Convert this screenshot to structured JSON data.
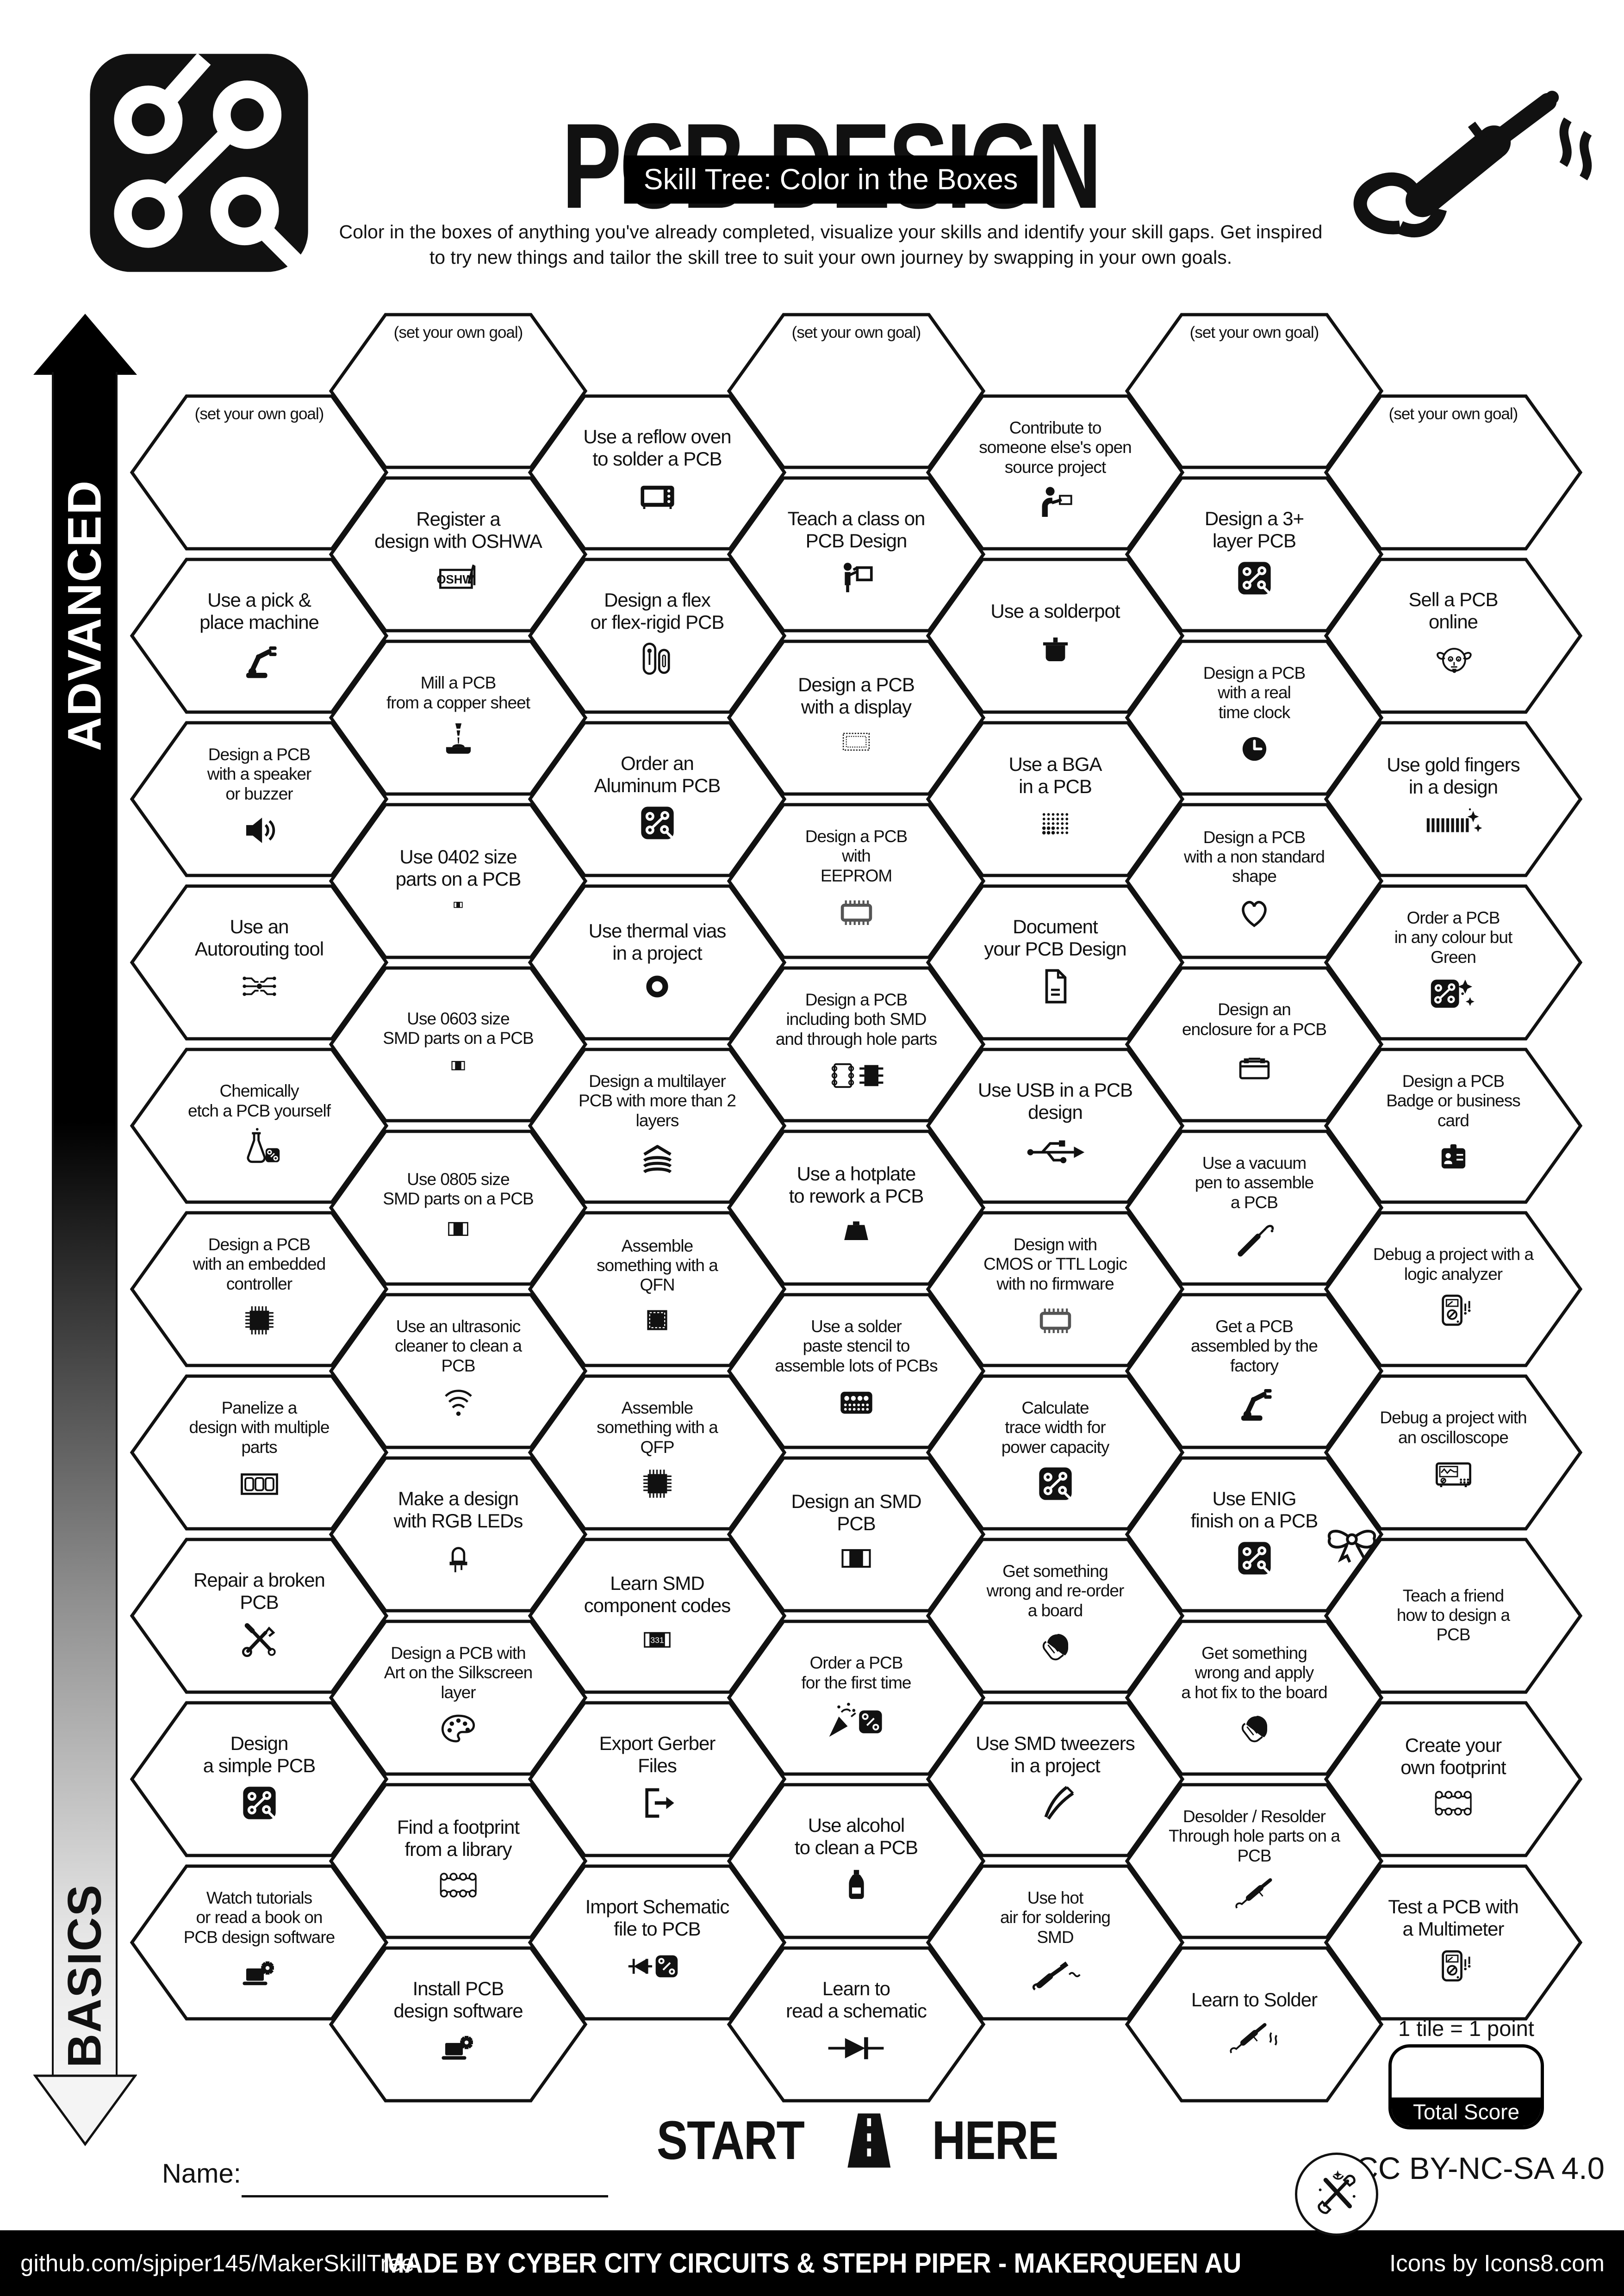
{
  "header": {
    "title": "PCB DESIGN",
    "subtitle": "Skill Tree: Color in the Boxes",
    "description": "Color in the boxes of anything you've already completed, visualize your skills and identify your skill gaps.  Get inspired\nto try new things and tailor the skill tree to suit your own journey by swapping in your own goals."
  },
  "axis": {
    "top_label": "ADVANCED",
    "bottom_label": "BASICS"
  },
  "start_marker": {
    "left": "START",
    "right": "HERE",
    "icon": "road-icon"
  },
  "name_field": {
    "label": "Name:"
  },
  "score": {
    "tile_note": "1 tile = 1 point",
    "box_label": "Total Score"
  },
  "license": "CC BY-NC-SA 4.0",
  "footer": {
    "left": "github.com/sjpiper145/MakerSkillTree",
    "center": "MADE BY CYBER CITY CIRCUITS & STEPH PIPER  -  MAKERQUEEN AU",
    "right": "Icons by Icons8.com"
  },
  "colors": {
    "ink": "#111111",
    "paper": "#ffffff"
  },
  "hexes": [
    {
      "col": 1,
      "slot": 0,
      "goal": true,
      "label": "(set your own goal)"
    },
    {
      "col": 1,
      "slot": 1,
      "label": "Use a pick &\nplace machine",
      "icon": "robot-arm-icon"
    },
    {
      "col": 1,
      "slot": 2,
      "label": "Design a PCB\nwith a speaker\nor buzzer",
      "icon": "speaker-icon"
    },
    {
      "col": 1,
      "slot": 3,
      "label": "Use an\nAutorouting tool",
      "icon": "autoroute-icon"
    },
    {
      "col": 1,
      "slot": 4,
      "label": "Chemically\netch a PCB yourself",
      "icon": "flask-pcb-icon"
    },
    {
      "col": 1,
      "slot": 5,
      "label": "Design a PCB\nwith an embedded\ncontroller",
      "icon": "chip-icon"
    },
    {
      "col": 1,
      "slot": 6,
      "label": "Panelize a\ndesign with multiple\nparts",
      "icon": "panel-icon"
    },
    {
      "col": 1,
      "slot": 7,
      "label": "Repair a broken\nPCB",
      "icon": "repair-tools-icon"
    },
    {
      "col": 1,
      "slot": 8,
      "label": "Design\na simple PCB",
      "icon": "pcb-icon"
    },
    {
      "col": 1,
      "slot": 9,
      "label": "Watch tutorials\nor read a book on\nPCB design software",
      "icon": "laptop-gear-icon"
    },
    {
      "col": 2,
      "slot": 0,
      "goal": true,
      "label": "(set your own goal)"
    },
    {
      "col": 2,
      "slot": 1,
      "label": "Register a\ndesign with OSHWA",
      "icon": "oshwa-logo-icon"
    },
    {
      "col": 2,
      "slot": 2,
      "label": "Mill a PCB\nfrom a copper sheet",
      "icon": "mill-icon"
    },
    {
      "col": 2,
      "slot": 3,
      "label": "Use 0402 size\nparts on a PCB",
      "icon": "resistor-0402-icon"
    },
    {
      "col": 2,
      "slot": 4,
      "label": "Use 0603 size\nSMD parts on a PCB",
      "icon": "resistor-0603-icon"
    },
    {
      "col": 2,
      "slot": 5,
      "label": "Use 0805 size\nSMD parts on a PCB",
      "icon": "resistor-0805-icon"
    },
    {
      "col": 2,
      "slot": 6,
      "label": "Use an ultrasonic\ncleaner to clean a\nPCB",
      "icon": "waves-icon"
    },
    {
      "col": 2,
      "slot": 7,
      "label": "Make a design\nwith RGB LEDs",
      "icon": "led-icon"
    },
    {
      "col": 2,
      "slot": 8,
      "label": "Design a PCB with\nArt on the Silkscreen\nlayer",
      "icon": "palette-icon"
    },
    {
      "col": 2,
      "slot": 9,
      "label": "Find a footprint\nfrom a library",
      "icon": "footprint-icon"
    },
    {
      "col": 2,
      "slot": 10,
      "label": "Install PCB\ndesign software",
      "icon": "laptop-gear-icon"
    },
    {
      "col": 3,
      "slot": 0,
      "label": "Use a reflow oven\nto solder a PCB",
      "icon": "reflow-oven-icon"
    },
    {
      "col": 3,
      "slot": 1,
      "label": "Design a flex\nor flex-rigid PCB",
      "icon": "flex-pcb-icon"
    },
    {
      "col": 3,
      "slot": 2,
      "label": "Order an\nAluminum PCB",
      "icon": "pcb-icon"
    },
    {
      "col": 3,
      "slot": 3,
      "label": "Use thermal vias\nin a project",
      "icon": "via-icon"
    },
    {
      "col": 3,
      "slot": 4,
      "label": "Design a multilayer\nPCB with more than 2\nlayers",
      "icon": "layers-icon"
    },
    {
      "col": 3,
      "slot": 5,
      "label": "Assemble\nsomething  with a\nQFN",
      "icon": "qfn-chip-icon"
    },
    {
      "col": 3,
      "slot": 6,
      "label": "Assemble\nsomething  with a\nQFP",
      "icon": "chip-icon"
    },
    {
      "col": 3,
      "slot": 7,
      "label": "Learn SMD\ncomponent codes",
      "icon": "smd-code-icon"
    },
    {
      "col": 3,
      "slot": 8,
      "label": "Export Gerber\nFiles",
      "icon": "export-icon"
    },
    {
      "col": 3,
      "slot": 9,
      "label": "Import Schematic\nfile to PCB",
      "icon": "import-schematic-icon"
    },
    {
      "col": 4,
      "slot": 0,
      "goal": true,
      "label": "(set your own goal)"
    },
    {
      "col": 4,
      "slot": 1,
      "label": "Teach a class on\nPCB Design",
      "icon": "teacher-icon"
    },
    {
      "col": 4,
      "slot": 2,
      "label": "Design a PCB\nwith a display",
      "icon": "display-icon"
    },
    {
      "col": 4,
      "slot": 3,
      "label": "Design a PCB\nwith\nEEPROM",
      "icon": "chip-outline-icon"
    },
    {
      "col": 4,
      "slot": 4,
      "label": "Design a PCB\nincluding both SMD\nand through hole parts",
      "icon": "smd-th-icon"
    },
    {
      "col": 4,
      "slot": 5,
      "label": "Use a hotplate\nto rework a PCB",
      "icon": "hotplate-icon"
    },
    {
      "col": 4,
      "slot": 6,
      "label": "Use a solder\npaste stencil to\nassemble lots of PCBs",
      "icon": "stencil-icon"
    },
    {
      "col": 4,
      "slot": 7,
      "label": "Design an SMD\nPCB",
      "icon": "smd-resistor-icon"
    },
    {
      "col": 4,
      "slot": 8,
      "label": "Order a PCB\nfor the first time",
      "icon": "party-pcb-icon"
    },
    {
      "col": 4,
      "slot": 9,
      "label": "Use alcohol\nto clean a PCB",
      "icon": "bottle-icon"
    },
    {
      "col": 4,
      "slot": 10,
      "label": "Learn to\nread a schematic",
      "icon": "diode-icon"
    },
    {
      "col": 5,
      "slot": 0,
      "label": "Contribute to\nsomeone else's open\nsource project",
      "icon": "contributor-icon"
    },
    {
      "col": 5,
      "slot": 1,
      "label": "Use a solderpot",
      "icon": "solderpot-icon"
    },
    {
      "col": 5,
      "slot": 2,
      "label": "Use a BGA\nin a PCB",
      "icon": "bga-icon"
    },
    {
      "col": 5,
      "slot": 3,
      "label": "Document\nyour PCB Design",
      "icon": "document-icon"
    },
    {
      "col": 5,
      "slot": 4,
      "label": "Use USB in a PCB\ndesign",
      "icon": "usb-icon"
    },
    {
      "col": 5,
      "slot": 5,
      "label": "Design with\nCMOS or TTL Logic\nwith no firmware",
      "icon": "chip-outline-icon"
    },
    {
      "col": 5,
      "slot": 6,
      "label": "Calculate\ntrace width for\npower capacity",
      "icon": "pcb-icon"
    },
    {
      "col": 5,
      "slot": 7,
      "label": "Get something\nwrong and re-order\na board",
      "icon": "facepalm-icon"
    },
    {
      "col": 5,
      "slot": 8,
      "label": "Use SMD tweezers\nin a project",
      "icon": "tweezers-icon"
    },
    {
      "col": 5,
      "slot": 9,
      "label": "Use hot\nair for soldering\nSMD",
      "icon": "hot-air-icon"
    },
    {
      "col": 6,
      "slot": 0,
      "goal": true,
      "label": "(set your own goal)"
    },
    {
      "col": 6,
      "slot": 1,
      "label": "Design a 3+\nlayer PCB",
      "icon": "pcb-icon"
    },
    {
      "col": 6,
      "slot": 2,
      "label": "Design a PCB\nwith a real\ntime clock",
      "icon": "clock-icon"
    },
    {
      "col": 6,
      "slot": 3,
      "label": "Design a PCB\nwith a non standard\nshape",
      "icon": "heart-icon"
    },
    {
      "col": 6,
      "slot": 4,
      "label": "Design an\nenclosure for a PCB",
      "icon": "enclosure-icon"
    },
    {
      "col": 6,
      "slot": 5,
      "label": "Use a vacuum\npen to assemble\na PCB",
      "icon": "vacuum-pen-icon"
    },
    {
      "col": 6,
      "slot": 6,
      "label": "Get a PCB\nassembled by the\nfactory",
      "icon": "robot-arm-icon"
    },
    {
      "col": 6,
      "slot": 7,
      "label": "Use ENIG\nfinish on a PCB",
      "icon": "pcb-icon"
    },
    {
      "col": 6,
      "slot": 8,
      "label": "Get something\nwrong and apply\na hot fix to the board",
      "icon": "facepalm-icon"
    },
    {
      "col": 6,
      "slot": 9,
      "label": "Desolder / Resolder\nThrough hole parts on a\nPCB",
      "icon": "soldering-iron-icon"
    },
    {
      "col": 6,
      "slot": 10,
      "label": "Learn to Solder",
      "icon": "soldering-smoke-icon"
    },
    {
      "col": 7,
      "slot": 0,
      "goal": true,
      "label": "(set your own goal)"
    },
    {
      "col": 7,
      "slot": 1,
      "label": "Sell a PCB\nonline",
      "icon": "dog-icon"
    },
    {
      "col": 7,
      "slot": 2,
      "label": "Use gold fingers\nin a design",
      "icon": "gold-fingers-icon"
    },
    {
      "col": 7,
      "slot": 3,
      "label": "Order a PCB\nin any colour but\nGreen",
      "icon": "pcb-sparkle-icon"
    },
    {
      "col": 7,
      "slot": 4,
      "label": "Design a PCB\nBadge or business\ncard",
      "icon": "badge-icon"
    },
    {
      "col": 7,
      "slot": 5,
      "label": "Debug a project with a\nlogic analyzer",
      "icon": "multimeter-icon"
    },
    {
      "col": 7,
      "slot": 6,
      "label": "Debug a project with\nan oscilloscope",
      "icon": "oscilloscope-icon"
    },
    {
      "col": 7,
      "slot": 7,
      "label": "Teach a friend\nhow to design a\nPCB",
      "decoration": "bow-icon"
    },
    {
      "col": 7,
      "slot": 8,
      "label": "Create your\nown footprint",
      "icon": "footprint-icon"
    },
    {
      "col": 7,
      "slot": 9,
      "label": "Test a PCB with\na Multimeter",
      "icon": "multimeter-icon"
    }
  ]
}
